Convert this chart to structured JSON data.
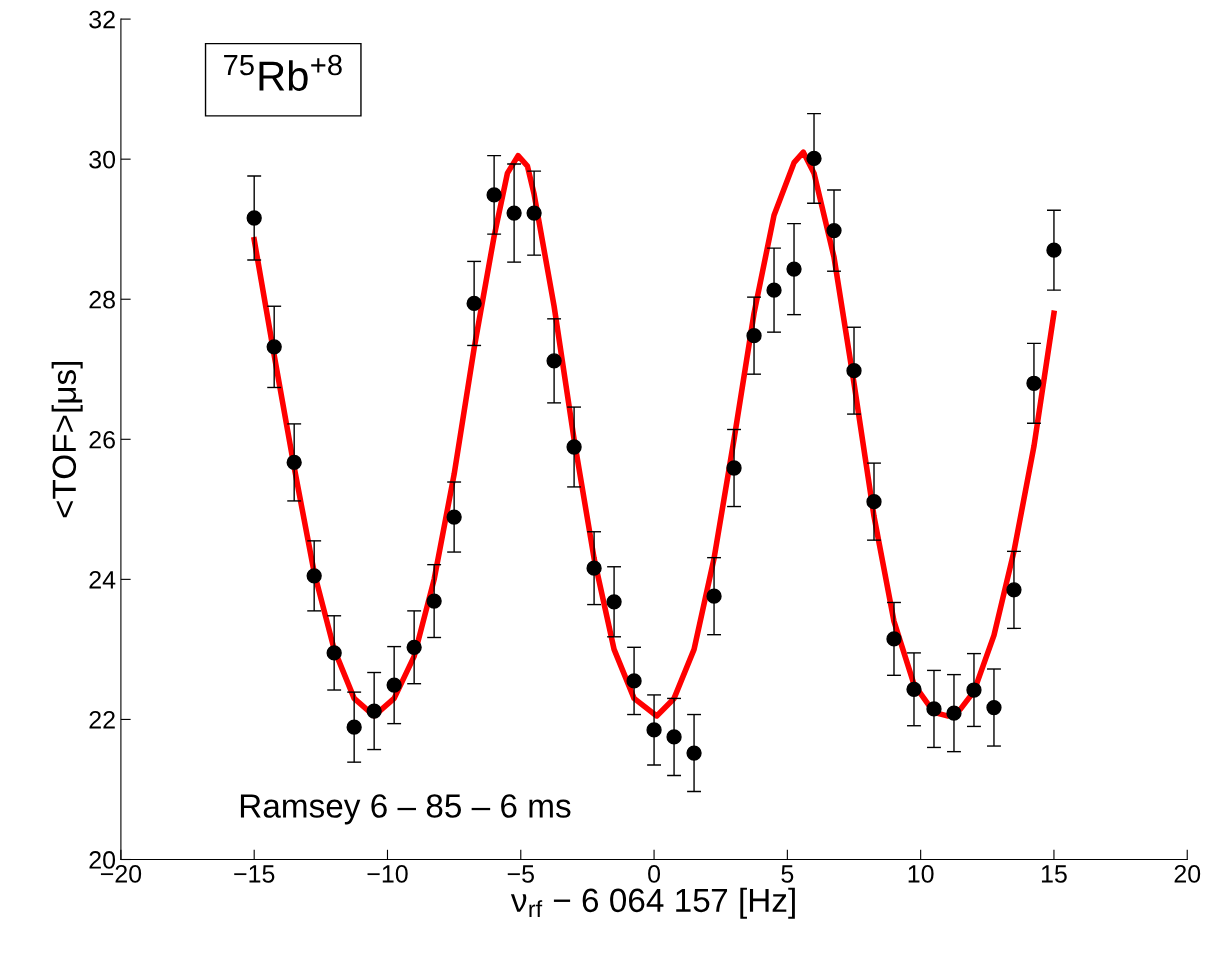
{
  "chart_data": {
    "type": "scatter",
    "xlabel": "ν$_{rf}$ − 6 064 157 [Hz]",
    "ylabel": "<TOF>[μs]",
    "xlim": [
      -20,
      20
    ],
    "ylim": [
      20,
      32
    ],
    "xticks": [
      {
        "value": -20,
        "label": "−20"
      },
      {
        "value": -15,
        "label": "−15"
      },
      {
        "value": -10,
        "label": "−10"
      },
      {
        "value": -5,
        "label": "−5"
      },
      0,
      5,
      10,
      15,
      20
    ],
    "yticks": [
      20,
      22,
      24,
      26,
      28,
      30,
      32
    ],
    "grid": false,
    "legend": false,
    "annotations": [
      "$^{75}$Rb$^{+8}$",
      "Ramsey 6 – 85 – 6 ms"
    ],
    "series": [
      {
        "type": "line",
        "color": "#ff0000",
        "marker": "none",
        "line_style": "solid",
        "x": [
          -15,
          -14.25,
          -13.5,
          -12.75,
          -12,
          -11.25,
          -10.5,
          -9.75,
          -9,
          -8.25,
          -7.5,
          -6.75,
          -6,
          -5.5,
          -5.1,
          -4.75,
          -4.5,
          -3.75,
          -3,
          -2.25,
          -1.5,
          -0.75,
          0.1,
          0.75,
          1.5,
          2.25,
          3,
          3.75,
          4.5,
          5.25,
          5.6,
          6,
          6.75,
          7.5,
          8.25,
          9,
          9.75,
          10.5,
          11,
          11.5,
          12,
          12.75,
          13.5,
          14.25,
          15
        ],
        "values": [
          28.85,
          27.2,
          25.6,
          24.1,
          23.0,
          22.3,
          22.05,
          22.3,
          22.9,
          24.0,
          25.5,
          27.3,
          28.9,
          29.8,
          30.05,
          29.9,
          29.5,
          27.9,
          26.0,
          24.3,
          23.0,
          22.3,
          22.05,
          22.3,
          23.0,
          24.3,
          26.0,
          27.8,
          29.2,
          29.95,
          30.1,
          29.8,
          28.6,
          26.8,
          24.9,
          23.4,
          22.5,
          22.1,
          22.05,
          22.15,
          22.4,
          23.2,
          24.4,
          25.9,
          27.8
        ]
      },
      {
        "color": "#000000",
        "marker": "circle",
        "x": [
          -15,
          -14.25,
          -13.5,
          -12.75,
          -12,
          -11.25,
          -10.5,
          -9.75,
          -9,
          -8.25,
          -7.5,
          -6.75,
          -6,
          -5.25,
          -4.5,
          -3.75,
          -3,
          -2.25,
          -1.5,
          -0.75,
          0,
          0.75,
          1.5,
          2.25,
          3,
          3.75,
          4.5,
          5.25,
          6,
          6.75,
          7.5,
          8.25,
          9,
          9.75,
          10.5,
          11.25,
          12,
          12.75,
          13.5,
          14.25,
          15
        ],
        "values": [
          29.16,
          27.32,
          25.67,
          24.05,
          22.95,
          21.89,
          22.12,
          22.49,
          23.03,
          23.69,
          24.89,
          27.94,
          29.49,
          29.23,
          29.23,
          27.12,
          25.89,
          24.16,
          23.68,
          22.55,
          21.85,
          21.75,
          21.52,
          23.76,
          25.59,
          27.48,
          28.13,
          28.43,
          30.01,
          28.98,
          26.98,
          25.11,
          23.15,
          22.43,
          22.15,
          22.09,
          22.42,
          22.17,
          23.85,
          26.8,
          28.7
        ],
        "errors": [
          0.6,
          0.58,
          0.55,
          0.5,
          0.53,
          0.5,
          0.55,
          0.55,
          0.52,
          0.52,
          0.5,
          0.6,
          0.56,
          0.7,
          0.6,
          0.6,
          0.57,
          0.52,
          0.5,
          0.48,
          0.5,
          0.55,
          0.55,
          0.55,
          0.55,
          0.55,
          0.6,
          0.65,
          0.64,
          0.58,
          0.62,
          0.55,
          0.52,
          0.52,
          0.55,
          0.55,
          0.52,
          0.55,
          0.55,
          0.57,
          0.57
        ]
      }
    ]
  }
}
